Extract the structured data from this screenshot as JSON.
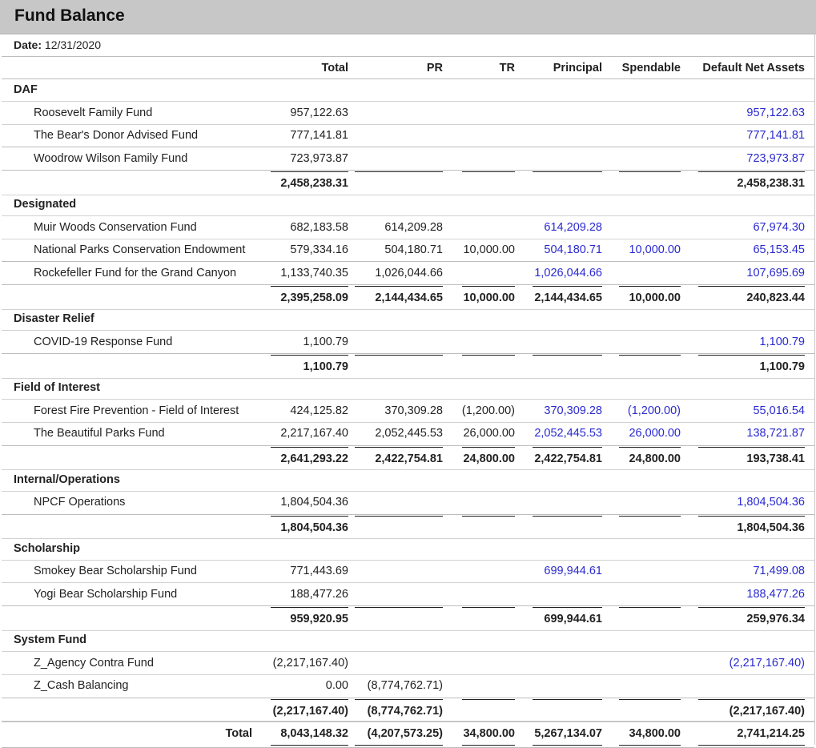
{
  "title": "Fund Balance",
  "date_label": "Date:",
  "date_value": "12/31/2020",
  "columns": [
    "Total",
    "PR",
    "TR",
    "Principal",
    "Spendable",
    "Default Net Assets"
  ],
  "categories": [
    {
      "name": "DAF",
      "funds": [
        {
          "name": "Roosevelt Family Fund",
          "values": [
            "957,122.63",
            "",
            "",
            "",
            "",
            "957,122.63"
          ]
        },
        {
          "name": "The Bear's Donor Advised Fund",
          "values": [
            "777,141.81",
            "",
            "",
            "",
            "",
            "777,141.81"
          ]
        },
        {
          "name": "Woodrow Wilson Family Fund",
          "values": [
            "723,973.87",
            "",
            "",
            "",
            "",
            "723,973.87"
          ]
        }
      ],
      "subtotal": [
        "2,458,238.31",
        "",
        "",
        "",
        "",
        "2,458,238.31"
      ]
    },
    {
      "name": "Designated",
      "funds": [
        {
          "name": "Muir Woods Conservation Fund",
          "values": [
            "682,183.58",
            "614,209.28",
            "",
            "614,209.28",
            "",
            "67,974.30"
          ]
        },
        {
          "name": "National Parks Conservation Endowment",
          "values": [
            "579,334.16",
            "504,180.71",
            "10,000.00",
            "504,180.71",
            "10,000.00",
            "65,153.45"
          ]
        },
        {
          "name": "Rockefeller Fund for the Grand Canyon",
          "values": [
            "1,133,740.35",
            "1,026,044.66",
            "",
            "1,026,044.66",
            "",
            "107,695.69"
          ]
        }
      ],
      "subtotal": [
        "2,395,258.09",
        "2,144,434.65",
        "10,000.00",
        "2,144,434.65",
        "10,000.00",
        "240,823.44"
      ]
    },
    {
      "name": "Disaster Relief",
      "funds": [
        {
          "name": "COVID-19 Response Fund",
          "values": [
            "1,100.79",
            "",
            "",
            "",
            "",
            "1,100.79"
          ]
        }
      ],
      "subtotal": [
        "1,100.79",
        "",
        "",
        "",
        "",
        "1,100.79"
      ]
    },
    {
      "name": "Field of Interest",
      "funds": [
        {
          "name": "Forest Fire Prevention - Field of Interest",
          "values": [
            "424,125.82",
            "370,309.28",
            "(1,200.00)",
            "370,309.28",
            "(1,200.00)",
            "55,016.54"
          ]
        },
        {
          "name": "The Beautiful Parks Fund",
          "values": [
            "2,217,167.40",
            "2,052,445.53",
            "26,000.00",
            "2,052,445.53",
            "26,000.00",
            "138,721.87"
          ]
        }
      ],
      "subtotal": [
        "2,641,293.22",
        "2,422,754.81",
        "24,800.00",
        "2,422,754.81",
        "24,800.00",
        "193,738.41"
      ]
    },
    {
      "name": "Internal/Operations",
      "funds": [
        {
          "name": "NPCF Operations",
          "values": [
            "1,804,504.36",
            "",
            "",
            "",
            "",
            "1,804,504.36"
          ]
        }
      ],
      "subtotal": [
        "1,804,504.36",
        "",
        "",
        "",
        "",
        "1,804,504.36"
      ]
    },
    {
      "name": "Scholarship",
      "funds": [
        {
          "name": "Smokey Bear Scholarship Fund",
          "values": [
            "771,443.69",
            "",
            "",
            "699,944.61",
            "",
            "71,499.08"
          ]
        },
        {
          "name": "Yogi Bear Scholarship Fund",
          "values": [
            "188,477.26",
            "",
            "",
            "",
            "",
            "188,477.26"
          ]
        }
      ],
      "subtotal": [
        "959,920.95",
        "",
        "",
        "699,944.61",
        "",
        "259,976.34"
      ]
    },
    {
      "name": "System Fund",
      "funds": [
        {
          "name": "Z_Agency Contra Fund",
          "values": [
            "(2,217,167.40)",
            "",
            "",
            "",
            "",
            "(2,217,167.40)"
          ]
        },
        {
          "name": "Z_Cash Balancing",
          "values": [
            "0.00",
            "(8,774,762.71)",
            "",
            "",
            "",
            ""
          ]
        }
      ],
      "subtotal": [
        "(2,217,167.40)",
        "(8,774,762.71)",
        "",
        "",
        "",
        "(2,217,167.40)"
      ]
    }
  ],
  "grand_total": {
    "label": "Total",
    "values": [
      "8,043,148.32",
      "(4,207,573.25)",
      "34,800.00",
      "5,267,134.07",
      "34,800.00",
      "2,741,214.25"
    ]
  }
}
